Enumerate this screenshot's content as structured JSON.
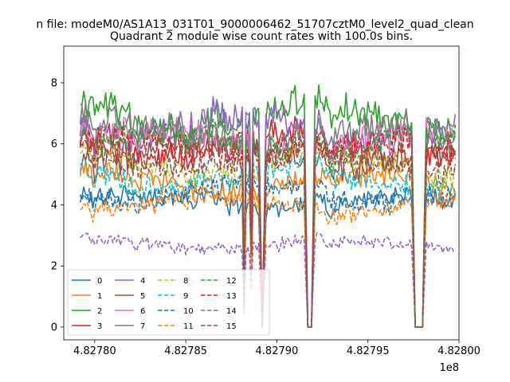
{
  "figure": {
    "suptitle": "n file: modeM0/AS1A13_031T01_9000006462_51707cztM0_level2_quad_clean"
  },
  "chart_data": {
    "type": "line",
    "title": "Quadrant 2 module wise count rates with 100.0s bins.",
    "xlabel": "",
    "ylabel": "",
    "x_offset_label": "1e8",
    "xlim": [
      4.827783,
      4.828
    ],
    "ylim": [
      -0.42,
      9.2
    ],
    "x_ticks": [
      4.8278,
      4.82785,
      4.8279,
      4.82795,
      4.828
    ],
    "x_tick_labels": [
      "4.82780",
      "4.82785",
      "4.82790",
      "4.82795",
      "4.82800"
    ],
    "y_ticks": [
      0,
      2,
      4,
      6,
      8
    ],
    "y_tick_labels": [
      "0",
      "2",
      "4",
      "6",
      "8"
    ],
    "x_start": 4.827792,
    "x_end": 4.827998,
    "n_points": 207,
    "dips": [
      {
        "x": 4.827882,
        "width": 8e-07,
        "depth": 0.82
      },
      {
        "x": 4.827886,
        "width": 8e-07,
        "depth": 0.55
      },
      {
        "x": 4.827892,
        "width": 4e-07,
        "depth": 1.0,
        "flat": true
      },
      {
        "x": 4.827918,
        "width": 1.6e-06,
        "depth": 1.0,
        "flat": true
      },
      {
        "x": 4.827978,
        "width": 2.2e-06,
        "depth": 1.0,
        "flat": true
      }
    ],
    "legend": {
      "position": "lower-left",
      "columns": 4
    },
    "series": [
      {
        "name": "0",
        "color": "#1f77b4",
        "dash": "solid",
        "level": 4.1
      },
      {
        "name": "1",
        "color": "#ff7f0e",
        "dash": "solid",
        "level": 4.7
      },
      {
        "name": "2",
        "color": "#2ca02c",
        "dash": "solid",
        "level": 6.9
      },
      {
        "name": "3",
        "color": "#d62728",
        "dash": "solid",
        "level": 5.9
      },
      {
        "name": "4",
        "color": "#9467bd",
        "dash": "solid",
        "level": 6.5
      },
      {
        "name": "5",
        "color": "#8c564b",
        "dash": "solid",
        "level": 5.6
      },
      {
        "name": "6",
        "color": "#e377c2",
        "dash": "solid",
        "level": 6.1
      },
      {
        "name": "7",
        "color": "#7f7f7f",
        "dash": "solid",
        "level": 6.3
      },
      {
        "name": "8",
        "color": "#bcbd22",
        "dash": "dashed",
        "level": 5.3
      },
      {
        "name": "9",
        "color": "#17becf",
        "dash": "dashed",
        "level": 4.9
      },
      {
        "name": "10",
        "color": "#1f77b4",
        "dash": "dashed",
        "level": 4.4
      },
      {
        "name": "11",
        "color": "#ff7f0e",
        "dash": "dashed",
        "level": 4.0
      },
      {
        "name": "12",
        "color": "#2ca02c",
        "dash": "dashed",
        "level": 6.0
      },
      {
        "name": "13",
        "color": "#d62728",
        "dash": "dashed",
        "level": 5.8
      },
      {
        "name": "14",
        "color": "#9467bd",
        "dash": "dashed",
        "level": 2.7
      },
      {
        "name": "15",
        "color": "#8c564b",
        "dash": "dashed",
        "level": 5.5
      }
    ]
  }
}
